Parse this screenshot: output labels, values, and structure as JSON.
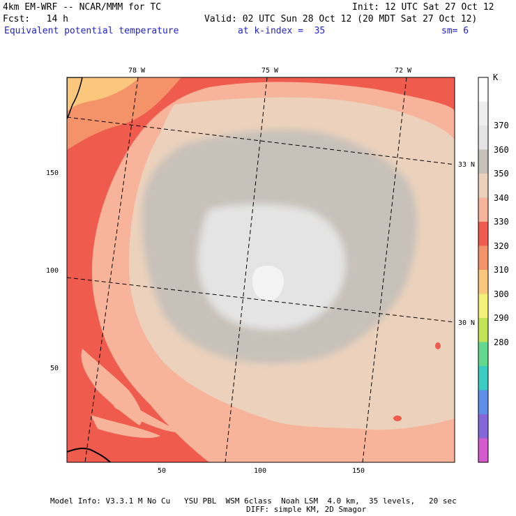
{
  "header": {
    "line1_left": "4km EM-WRF -- NCAR/MMM for TC",
    "line1_right": "Init: 12 UTC Sat 27 Oct 12",
    "line2_left": "Fcst:   14 h",
    "line2_right": "Valid: 02 UTC Sun 28 Oct 12 (20 MDT Sat 27 Oct 12)",
    "field_name": "Equivalent potential temperature",
    "level": "at k-index =  35",
    "smoothing": "sm= 6"
  },
  "map": {
    "longitude_labels": [
      "78 W",
      "75 W",
      "72 W"
    ],
    "latitude_labels": [
      "33 N",
      "30 N"
    ],
    "x_ticks": [
      "50",
      "100",
      "150"
    ],
    "y_ticks": [
      "150",
      "100",
      "50"
    ]
  },
  "colorbar": {
    "unit": "K",
    "labels": [
      "370",
      "360",
      "350",
      "340",
      "330",
      "320",
      "310",
      "300",
      "290",
      "280"
    ],
    "colors": [
      "#ffffff",
      "#eeeeee",
      "#e4e4e4",
      "#c8c1b9",
      "#ecd2bd",
      "#f8b49a",
      "#ef5b4d",
      "#f4936a",
      "#fac77c",
      "#f5f07a",
      "#c0e455",
      "#62d98e",
      "#38ccc2",
      "#5e8ee6",
      "#8468d8",
      "#d45ad0"
    ]
  },
  "footer": {
    "line1": "Model Info: V3.3.1 M No Cu   YSU PBL  WSM 6class  Noah LSM  4.0 km,  35 levels,   20 sec",
    "line2": "DIFF: simple KM, 2D Smagor"
  }
}
